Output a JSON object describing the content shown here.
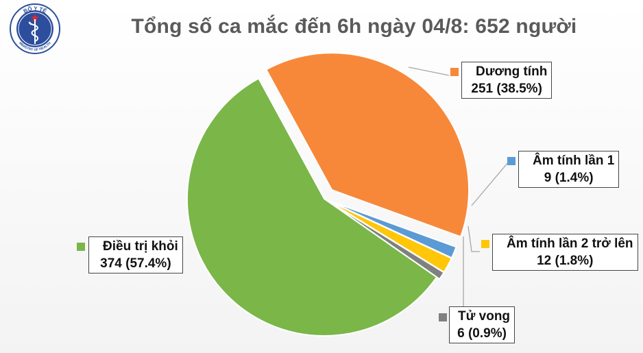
{
  "logo": {
    "top_text": "BỘ Y TẾ",
    "bottom_text": "MINISTRY OF HEALTH"
  },
  "chart_data": {
    "type": "pie",
    "title": "Tổng số ca mắc đến 6h ngày 04/8: 652 người",
    "total": 652,
    "slices": [
      {
        "name": "Dương tính",
        "value": 251,
        "percent": "38.5%",
        "color": "#f7883a",
        "exploded": true
      },
      {
        "name": "Âm tính lần 1",
        "value": 9,
        "percent": "1.4%",
        "color": "#5b9bd5",
        "exploded": false
      },
      {
        "name": "Âm tính lần 2 trở lên",
        "value": 12,
        "percent": "1.8%",
        "color": "#ffc60a",
        "exploded": false
      },
      {
        "name": "Tử vong",
        "value": 6,
        "percent": "0.9%",
        "color": "#808080",
        "exploded": false
      },
      {
        "name": "Điều trị khỏi",
        "value": 374,
        "percent": "57.4%",
        "color": "#7ab648",
        "exploded": false
      }
    ],
    "labels": [
      {
        "name_text": "Dương tính",
        "value_text": "251 (38.5%)"
      },
      {
        "name_text": "Âm tính lần 1",
        "value_text": "9 (1.4%)"
      },
      {
        "name_text": "Âm tính lần 2 trở lên",
        "value_text": "12 (1.8%)"
      },
      {
        "name_text": "Tử vong",
        "value_text": "6 (0.9%)"
      },
      {
        "name_text": "Điều trị khỏi",
        "value_text": "374 (57.4%)"
      }
    ]
  }
}
